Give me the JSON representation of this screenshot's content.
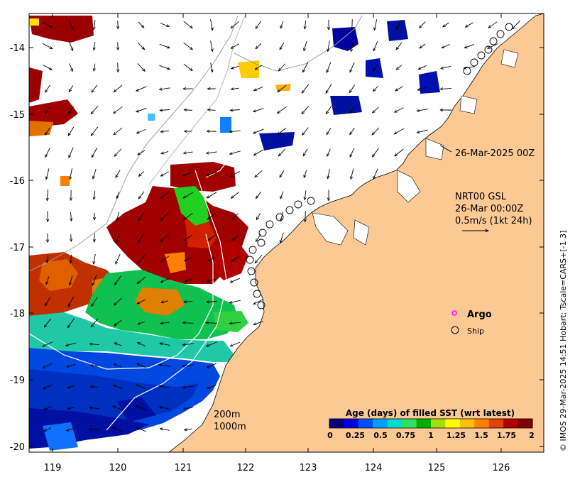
{
  "map": {
    "lon_ticks": [
      "119",
      "120",
      "121",
      "122",
      "123",
      "124",
      "125",
      "126"
    ],
    "lat_ticks": [
      "-14",
      "-15",
      "-16",
      "-17",
      "-18",
      "-19",
      "-20"
    ],
    "lon_range": [
      118.6,
      126.7
    ],
    "lat_range": [
      -13.55,
      -20.05
    ],
    "colors": {
      "land": "#fcc995",
      "water": "#ffffff",
      "current_arrow": "#000000",
      "isobath": "#a0a0a0"
    }
  },
  "annotations": {
    "timestamp": "26-Mar-2025 00Z",
    "product": "NRT00 GSL",
    "product_time": "26-Mar 00:00Z",
    "scale": "0.5m/s (1kt 24h)",
    "isobath_200": "200m",
    "isobath_1000": "1000m"
  },
  "legend": {
    "argo_label": "Argo",
    "ship_label": "Ship",
    "argo_color": "#ff00ff"
  },
  "colorbar": {
    "title": "Age (days) of filled SST (wrt latest)",
    "ticks": [
      "0",
      "0.25",
      "0.5",
      "0.75",
      "1",
      "1.25",
      "1.5",
      "1.75",
      "2"
    ],
    "colors": [
      "#00007f",
      "#0000e0",
      "#0050ff",
      "#00a0ff",
      "#00dcd0",
      "#30e060",
      "#00b000",
      "#a0e000",
      "#ffff00",
      "#ffc000",
      "#ff8000",
      "#e04000",
      "#b00000",
      "#800000"
    ]
  },
  "credit": "© IMOS 29-Mar-2025 14:51 Hobart; Tscale=CARS+[-1 3]"
}
